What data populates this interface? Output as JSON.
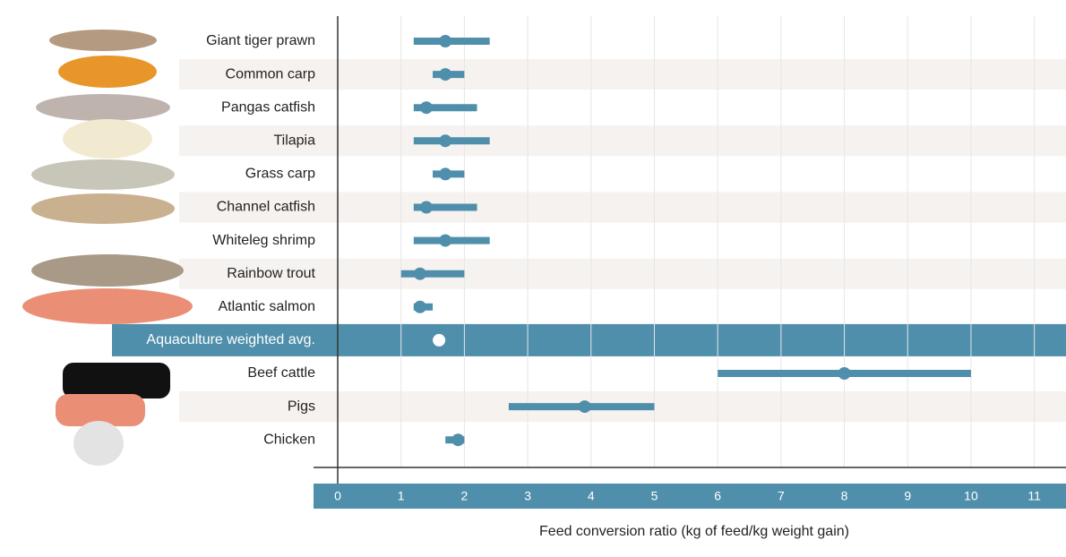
{
  "chart_data": {
    "type": "dot-range",
    "x_label": "Feed conversion ratio (kg of feed/kg weight gain)",
    "categories": [
      "Giant tiger prawn",
      "Common carp",
      "Pangas catfish",
      "Tilapia",
      "Grass carp",
      "Channel catfish",
      "Whiteleg shrimp",
      "Rainbow trout",
      "Atlantic salmon",
      "Aquaculture weighted avg.",
      "Beef cattle",
      "Pigs",
      "Chicken"
    ],
    "values": [
      1.7,
      1.7,
      1.4,
      1.7,
      1.7,
      1.4,
      1.7,
      1.3,
      1.3,
      1.6,
      8.0,
      3.9,
      1.9
    ],
    "low": [
      1.2,
      1.5,
      1.2,
      1.2,
      1.5,
      1.2,
      1.2,
      1.0,
      1.2,
      null,
      6.0,
      2.7,
      1.7
    ],
    "high": [
      2.4,
      2.0,
      2.2,
      2.4,
      2.0,
      2.2,
      2.4,
      2.0,
      1.5,
      null,
      10.0,
      5.0,
      2.0
    ],
    "highlight_index": 9,
    "color": "#4f8fab",
    "xlim": [
      0,
      11.5
    ],
    "xticks": [
      0,
      1,
      2,
      3,
      4,
      5,
      6,
      7,
      8,
      9,
      10,
      11
    ],
    "grid": true
  }
}
